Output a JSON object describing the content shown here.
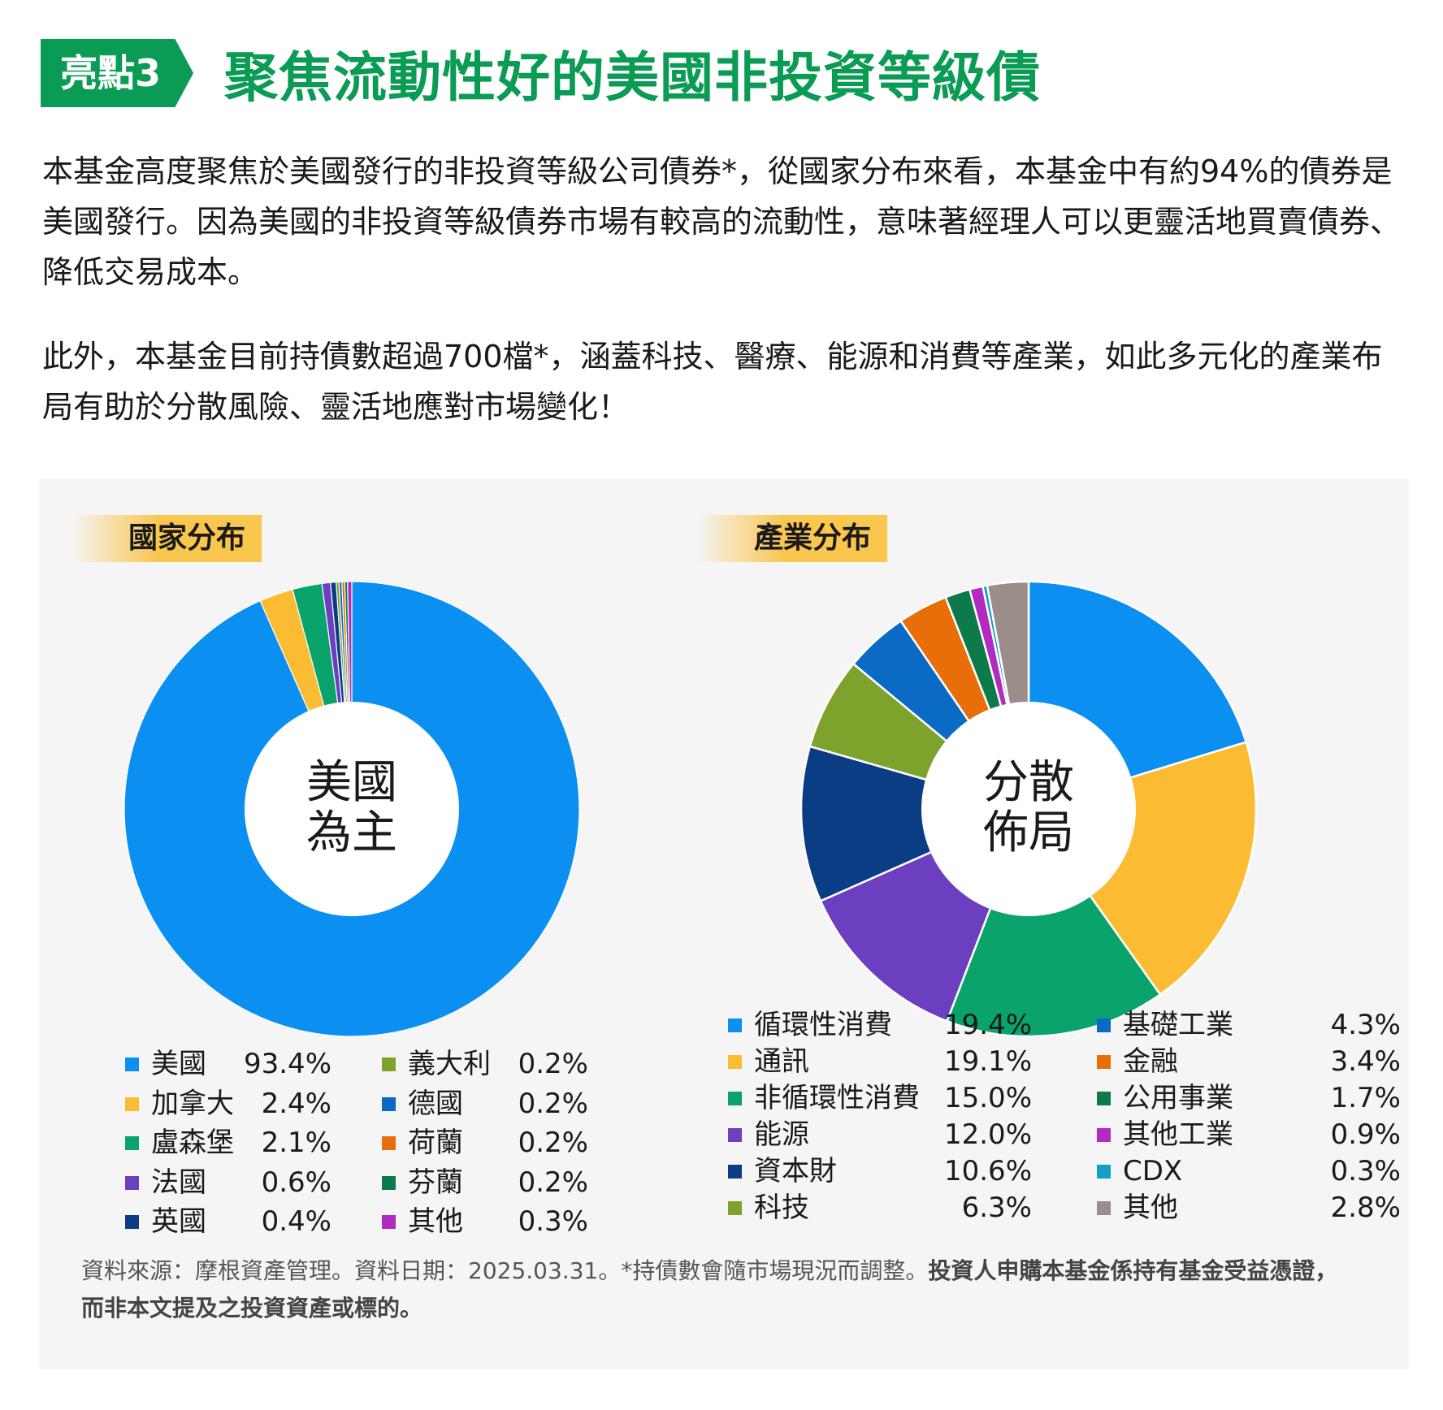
{
  "header": {
    "badge": "亮點3",
    "title": "聚焦流動性好的美國非投資等級債",
    "accent_color": "#0a9b55"
  },
  "paragraphs": [
    "本基金高度聚焦於美國發行的非投資等級公司債券*，從國家分布來看，本基金中有約94%的債券是美國發行。因為美國的非投資等級債券市場有較高的流動性，意味著經理人可以更靈活地買賣債券、降低交易成本。",
    "此外，本基金目前持債數超過700檔*，涵蓋科技、醫療、能源和消費等產業，如此多元化的產業布局有助於分散風險、靈活地應對市場變化！"
  ],
  "chart_data": [
    {
      "type": "pie",
      "title": "國家分布",
      "center_label": [
        "美國",
        "為主"
      ],
      "categories": [
        "美國",
        "加拿大",
        "盧森堡",
        "法國",
        "英國",
        "義大利",
        "德國",
        "荷蘭",
        "芬蘭",
        "其他"
      ],
      "values": [
        93.4,
        2.4,
        2.1,
        0.6,
        0.4,
        0.2,
        0.2,
        0.2,
        0.2,
        0.3
      ],
      "labels": [
        "93.4%",
        "2.4%",
        "2.1%",
        "0.6%",
        "0.4%",
        "0.2%",
        "0.2%",
        "0.2%",
        "0.2%",
        "0.3%"
      ],
      "colors": [
        "#0b8ff0",
        "#fbbc34",
        "#0aa36b",
        "#6c3fc1",
        "#0b3d84",
        "#7ea32d",
        "#0a6ac4",
        "#e86e0a",
        "#0c7a4a",
        "#b22bc1"
      ],
      "legend": "bottom"
    },
    {
      "type": "pie",
      "title": "產業分布",
      "center_label": [
        "分散",
        "佈局"
      ],
      "categories": [
        "循環性消費",
        "通訊",
        "非循環性消費",
        "能源",
        "資本財",
        "科技",
        "基礎工業",
        "金融",
        "公用事業",
        "其他工業",
        "CDX",
        "其他"
      ],
      "values": [
        19.4,
        19.1,
        15.0,
        12.0,
        10.6,
        6.3,
        4.3,
        3.4,
        1.7,
        0.9,
        0.3,
        2.8
      ],
      "labels": [
        "19.4%",
        "19.1%",
        "15.0%",
        "12.0%",
        "10.6%",
        "6.3%",
        "4.3%",
        "3.4%",
        "1.7%",
        "0.9%",
        "0.3%",
        "2.8%"
      ],
      "colors": [
        "#0b8ff0",
        "#fbbc34",
        "#0aa36b",
        "#6c3fc1",
        "#0b3d84",
        "#7ea32d",
        "#0a6ac4",
        "#e86e0a",
        "#0c7a4a",
        "#b22bc1",
        "#14a0c4",
        "#9a8d8a"
      ],
      "legend": "bottom"
    }
  ],
  "source": {
    "normal": "資料來源：摩根資產管理。資料日期：2025.03.31。*持債數會隨市場現況而調整。",
    "bold": "投資人申購本基金係持有基金受益憑證，而非本文提及之投資資產或標的。"
  }
}
